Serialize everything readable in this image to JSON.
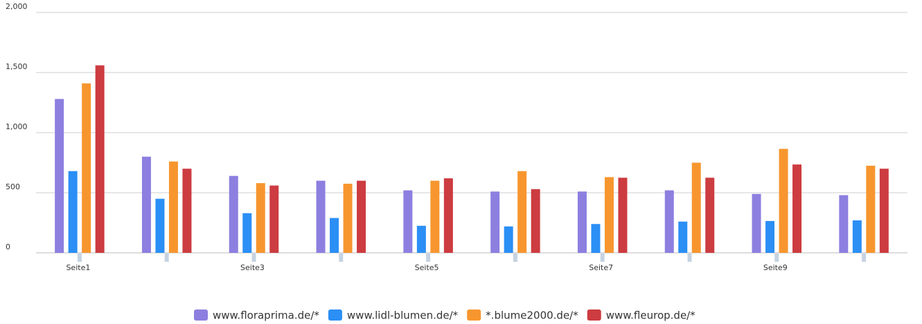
{
  "chart_data": {
    "type": "bar",
    "categories": [
      "Seite1",
      null,
      "Seite3",
      null,
      "Seite5",
      null,
      "Seite7",
      null,
      "Seite9",
      null
    ],
    "series": [
      {
        "name": "www.floraprima.de/*",
        "color": "#8c7fe0",
        "values": [
          1280,
          800,
          640,
          600,
          520,
          510,
          510,
          520,
          490,
          480
        ]
      },
      {
        "name": "www.lidl-blumen.de/*",
        "color": "#2b8ff5",
        "values": [
          680,
          450,
          330,
          290,
          225,
          220,
          240,
          260,
          265,
          270
        ]
      },
      {
        "name": "*.blume2000.de/*",
        "color": "#f7962f",
        "values": [
          1410,
          760,
          580,
          575,
          600,
          680,
          630,
          750,
          865,
          725
        ]
      },
      {
        "name": "www.fleurop.de/*",
        "color": "#cc3c40",
        "values": [
          1560,
          700,
          560,
          600,
          620,
          530,
          625,
          625,
          735,
          700
        ]
      }
    ],
    "ylim": [
      0,
      2000
    ],
    "yticks": [
      0,
      500,
      {
        "value": 1000,
        "label": "1,000"
      },
      {
        "value": 1500,
        "label": "1,500"
      },
      {
        "value": 2000,
        "label": "2,000"
      }
    ],
    "grid": true,
    "legend": "bottom"
  }
}
